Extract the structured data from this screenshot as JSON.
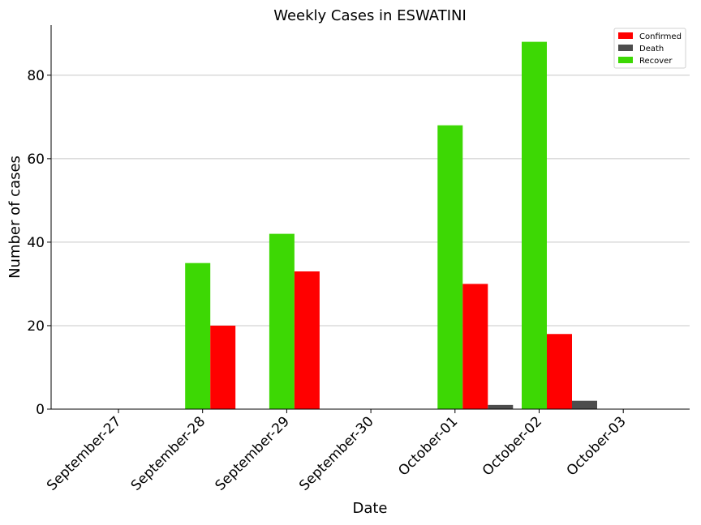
{
  "chart_data": {
    "type": "bar",
    "title": "Weekly Cases in ESWATINI",
    "xlabel": "Date",
    "ylabel": "Number of cases",
    "categories": [
      "September-27",
      "September-28",
      "September-29",
      "September-30",
      "October-01",
      "October-02",
      "October-03"
    ],
    "series": [
      {
        "name": "Recover",
        "color": "#3dd804",
        "values": [
          0,
          35,
          42,
          0,
          68,
          88,
          0
        ]
      },
      {
        "name": "Confirmed",
        "color": "#ff0000",
        "values": [
          0,
          20,
          33,
          0,
          30,
          18,
          0
        ]
      },
      {
        "name": "Death",
        "color": "#4d4d4d",
        "values": [
          0,
          0,
          0,
          0,
          1,
          2,
          0
        ]
      }
    ],
    "legend_order": [
      "Confirmed",
      "Death",
      "Recover"
    ],
    "ylim": [
      0,
      92
    ],
    "yticks": [
      0,
      20,
      40,
      60,
      80
    ],
    "grid": "horizontal",
    "legend_position": "top-right"
  }
}
